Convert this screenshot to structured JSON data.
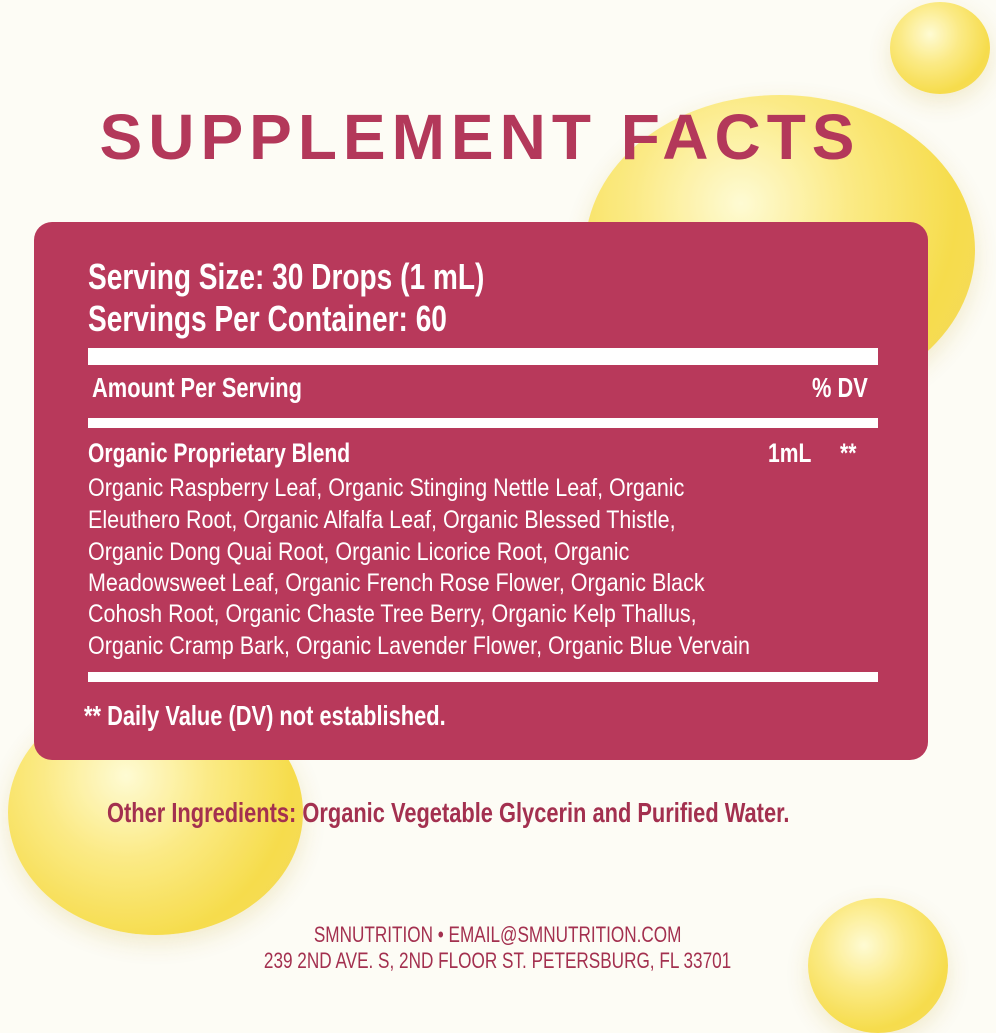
{
  "title": "SUPPLEMENT FACTS",
  "facts": {
    "serving_size": "Serving Size: 30 Drops (1 mL)",
    "servings_per_container": "Servings Per Container: 60",
    "amount_header": "Amount Per Serving",
    "dv_header": "% DV",
    "blend_name": "Organic Proprietary Blend",
    "blend_amount": "1mL",
    "blend_dv": "**",
    "ingredient_lines": [
      "Organic Raspberry Leaf, Organic Stinging Nettle Leaf, Organic",
      "Eleuthero Root, Organic Alfalfa Leaf, Organic Blessed Thistle,",
      "Organic Dong Quai Root, Organic Licorice Root, Organic",
      "Meadowsweet Leaf, Organic French Rose Flower, Organic Black",
      "Cohosh Root, Organic Chaste Tree Berry, Organic Kelp Thallus,",
      "Organic Cramp Bark, Organic Lavender Flower, Organic Blue Vervain"
    ],
    "footnote": "** Daily Value (DV) not established."
  },
  "other_ingredients": "Other Ingredients: Organic Vegetable Glycerin and Purified Water.",
  "footer": {
    "line1": "SMNUTRITION • EMAIL@SMNUTRITION.COM",
    "line2": "239 2ND AVE. S, 2ND FLOOR ST. PETERSBURG, FL 33701"
  },
  "colors": {
    "panel": "#b8395b",
    "text_accent": "#a3304f",
    "background": "#fdfcf5"
  }
}
